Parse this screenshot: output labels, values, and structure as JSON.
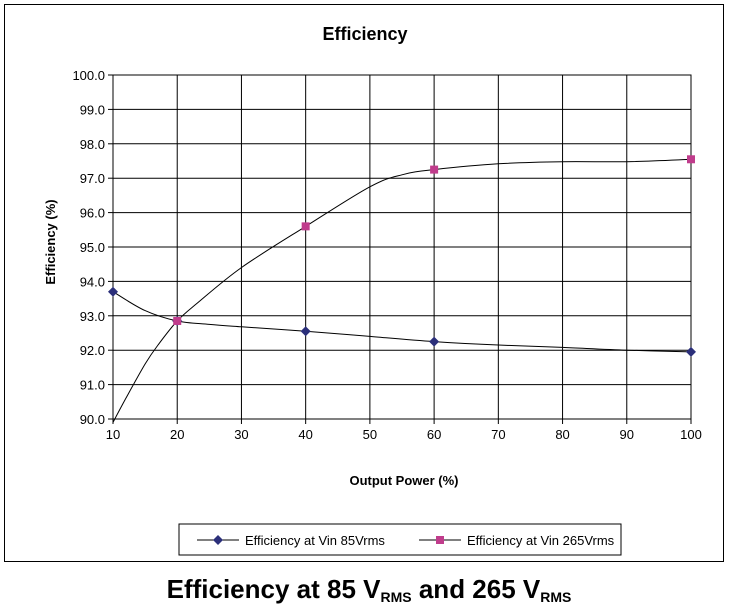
{
  "chart_data": {
    "type": "line",
    "title": "Efficiency",
    "xlabel": "Output Power (%)",
    "ylabel": "Efficiency (%)",
    "xlim": [
      10,
      100
    ],
    "ylim": [
      90.0,
      100.0
    ],
    "x_ticks": [
      "10",
      "20",
      "30",
      "40",
      "50",
      "60",
      "70",
      "80",
      "90",
      "100"
    ],
    "y_ticks": [
      "90.0",
      "91.0",
      "92.0",
      "93.0",
      "94.0",
      "95.0",
      "96.0",
      "97.0",
      "98.0",
      "99.0",
      "100.0"
    ],
    "grid": true,
    "legend_position": "bottom",
    "series": [
      {
        "name": "Efficiency at Vin 85Vrms",
        "marker": "diamond",
        "color": "#2b2f7a",
        "points": [
          [
            10,
            93.7
          ],
          [
            20,
            92.85
          ],
          [
            40,
            92.55
          ],
          [
            60,
            92.25
          ],
          [
            100,
            91.95
          ]
        ],
        "curve": [
          [
            10,
            93.7
          ],
          [
            15,
            93.15
          ],
          [
            20,
            92.85
          ],
          [
            25,
            92.75
          ],
          [
            30,
            92.68
          ],
          [
            40,
            92.55
          ],
          [
            50,
            92.4
          ],
          [
            60,
            92.25
          ],
          [
            70,
            92.15
          ],
          [
            80,
            92.08
          ],
          [
            90,
            92.0
          ],
          [
            100,
            91.95
          ]
        ]
      },
      {
        "name": "Efficiency at Vin 265Vrms",
        "marker": "square",
        "color": "#c03c8c",
        "points": [
          [
            20,
            92.85
          ],
          [
            40,
            95.6
          ],
          [
            60,
            97.25
          ],
          [
            100,
            97.55
          ]
        ],
        "curve": [
          [
            10,
            89.9
          ],
          [
            12,
            90.6
          ],
          [
            15,
            91.6
          ],
          [
            17,
            92.15
          ],
          [
            20,
            92.85
          ],
          [
            23,
            93.35
          ],
          [
            30,
            94.4
          ],
          [
            40,
            95.6
          ],
          [
            50,
            96.75
          ],
          [
            55,
            97.1
          ],
          [
            60,
            97.25
          ],
          [
            70,
            97.42
          ],
          [
            80,
            97.48
          ],
          [
            90,
            97.48
          ],
          [
            100,
            97.55
          ]
        ]
      }
    ]
  },
  "caption": {
    "text_a": "Efficiency at 85 V",
    "sub_a": "RMS",
    "text_b": " and 265 V",
    "sub_b": "RMS"
  }
}
